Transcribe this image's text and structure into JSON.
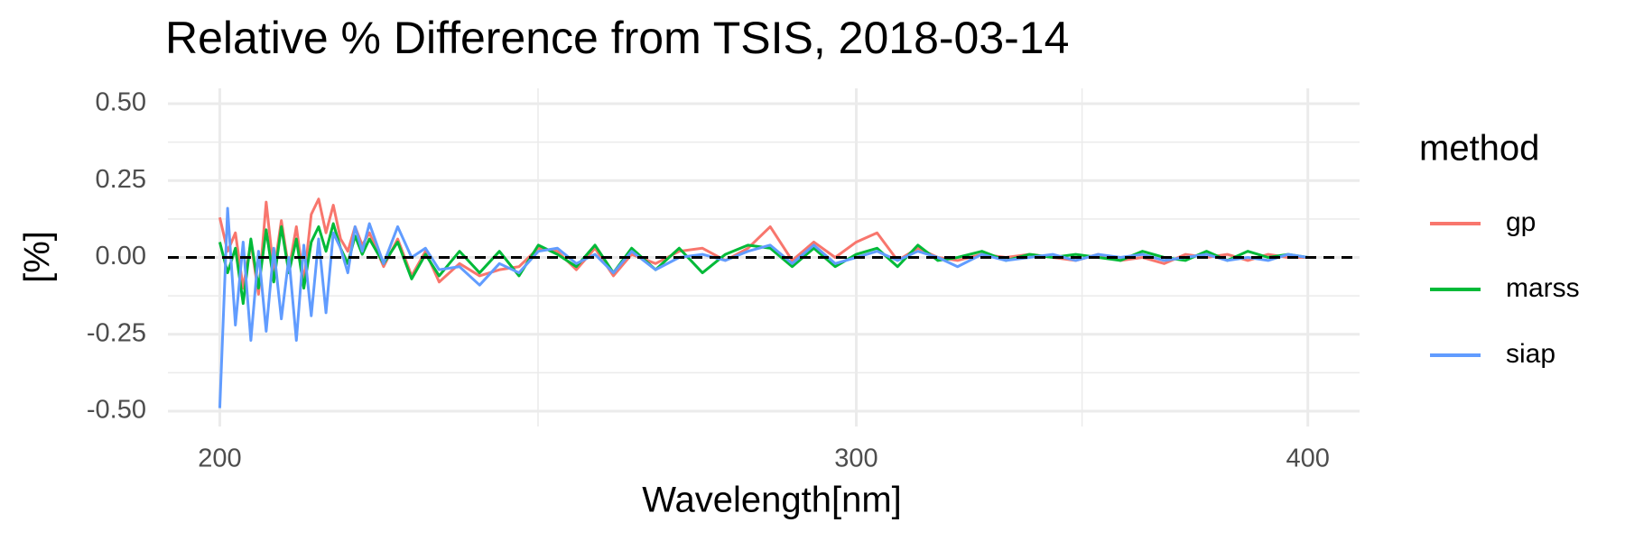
{
  "chart_data": {
    "type": "line",
    "title": "Relative % Difference from TSIS, 2018-03-14",
    "x_label": "Wavelength[nm]",
    "y_label": "[%]",
    "legend_title": "method",
    "x_scale": "log",
    "grid": true,
    "legend_position": "right",
    "reference_line": 0,
    "xlim": [
      193.5,
      413.4
    ],
    "xticks": [
      200,
      300,
      400
    ],
    "ylim": [
      -0.55,
      0.55
    ],
    "yticks": [
      {
        "value": 0.5,
        "label": "0.50"
      },
      {
        "value": 0.25,
        "label": "0.25"
      },
      {
        "value": 0,
        "label": "0.00"
      },
      {
        "value": -0.25,
        "label": "-0.25"
      },
      {
        "value": -0.5,
        "label": "-0.50"
      }
    ],
    "x": [
      200,
      201,
      202,
      203,
      204,
      205,
      206,
      207,
      208,
      209,
      210,
      211,
      212,
      213,
      214,
      215,
      216,
      217,
      218,
      219,
      220,
      222,
      224,
      226,
      228,
      230,
      233,
      236,
      239,
      242,
      245,
      248,
      251,
      254,
      257,
      260,
      264,
      268,
      272,
      276,
      280,
      284,
      288,
      292,
      296,
      300,
      304,
      308,
      312,
      316,
      320,
      325,
      330,
      335,
      340,
      345,
      350,
      355,
      360,
      365,
      370,
      375,
      380,
      385,
      390,
      395,
      400
    ],
    "series": [
      {
        "name": "gp",
        "color": "#F8766D",
        "values": [
          0.13,
          0.02,
          0.08,
          -0.1,
          0.05,
          -0.12,
          0.18,
          -0.05,
          0.12,
          -0.04,
          0.1,
          -0.08,
          0.14,
          0.19,
          0.08,
          0.17,
          0.06,
          0.02,
          0.1,
          0.04,
          0.08,
          -0.03,
          0.06,
          -0.06,
          0.02,
          -0.08,
          -0.02,
          -0.06,
          -0.04,
          -0.03,
          0.03,
          0.02,
          -0.04,
          0.03,
          -0.06,
          0.01,
          -0.02,
          0.02,
          0.03,
          -0.01,
          0.03,
          0.1,
          -0.01,
          0.05,
          0.0,
          0.05,
          0.08,
          -0.01,
          0.03,
          0.0,
          -0.01,
          0.01,
          0.0,
          0.01,
          0.0,
          -0.01,
          0.01,
          -0.01,
          0.0,
          -0.02,
          0.01,
          0.0,
          0.01,
          -0.01,
          0.01,
          0.0,
          0.0
        ]
      },
      {
        "name": "marss",
        "color": "#00BA38",
        "values": [
          0.05,
          -0.05,
          0.03,
          -0.15,
          0.06,
          -0.1,
          0.09,
          -0.08,
          0.1,
          -0.05,
          0.06,
          -0.1,
          0.05,
          0.1,
          0.02,
          0.11,
          0.03,
          -0.02,
          0.07,
          0.01,
          0.06,
          -0.02,
          0.05,
          -0.07,
          0.01,
          -0.06,
          0.02,
          -0.05,
          0.02,
          -0.06,
          0.04,
          0.01,
          -0.03,
          0.04,
          -0.05,
          0.03,
          -0.04,
          0.03,
          -0.05,
          0.01,
          0.04,
          0.03,
          -0.03,
          0.03,
          -0.03,
          0.01,
          0.03,
          -0.03,
          0.04,
          -0.01,
          0.0,
          0.02,
          -0.01,
          0.01,
          0.0,
          0.01,
          0.0,
          -0.01,
          0.02,
          0.0,
          -0.01,
          0.02,
          -0.01,
          0.02,
          0.0,
          0.01,
          0.0
        ]
      },
      {
        "name": "siap",
        "color": "#619CFF",
        "values": [
          -0.49,
          0.16,
          -0.22,
          0.05,
          -0.27,
          0.02,
          -0.24,
          0.03,
          -0.2,
          0.0,
          -0.27,
          0.04,
          -0.19,
          0.06,
          -0.18,
          0.08,
          0.03,
          -0.05,
          0.1,
          0.02,
          0.11,
          -0.02,
          0.1,
          0.0,
          0.03,
          -0.04,
          -0.03,
          -0.09,
          -0.02,
          -0.05,
          0.02,
          0.03,
          -0.02,
          0.01,
          -0.05,
          0.02,
          -0.04,
          0.0,
          0.01,
          -0.01,
          0.02,
          0.04,
          -0.02,
          0.04,
          -0.02,
          0.0,
          0.02,
          -0.01,
          0.02,
          0.0,
          -0.03,
          0.01,
          -0.01,
          0.0,
          0.01,
          -0.01,
          0.01,
          0.0,
          0.01,
          -0.01,
          0.0,
          0.01,
          -0.01,
          0.0,
          -0.01,
          0.01,
          0.0
        ]
      }
    ]
  }
}
